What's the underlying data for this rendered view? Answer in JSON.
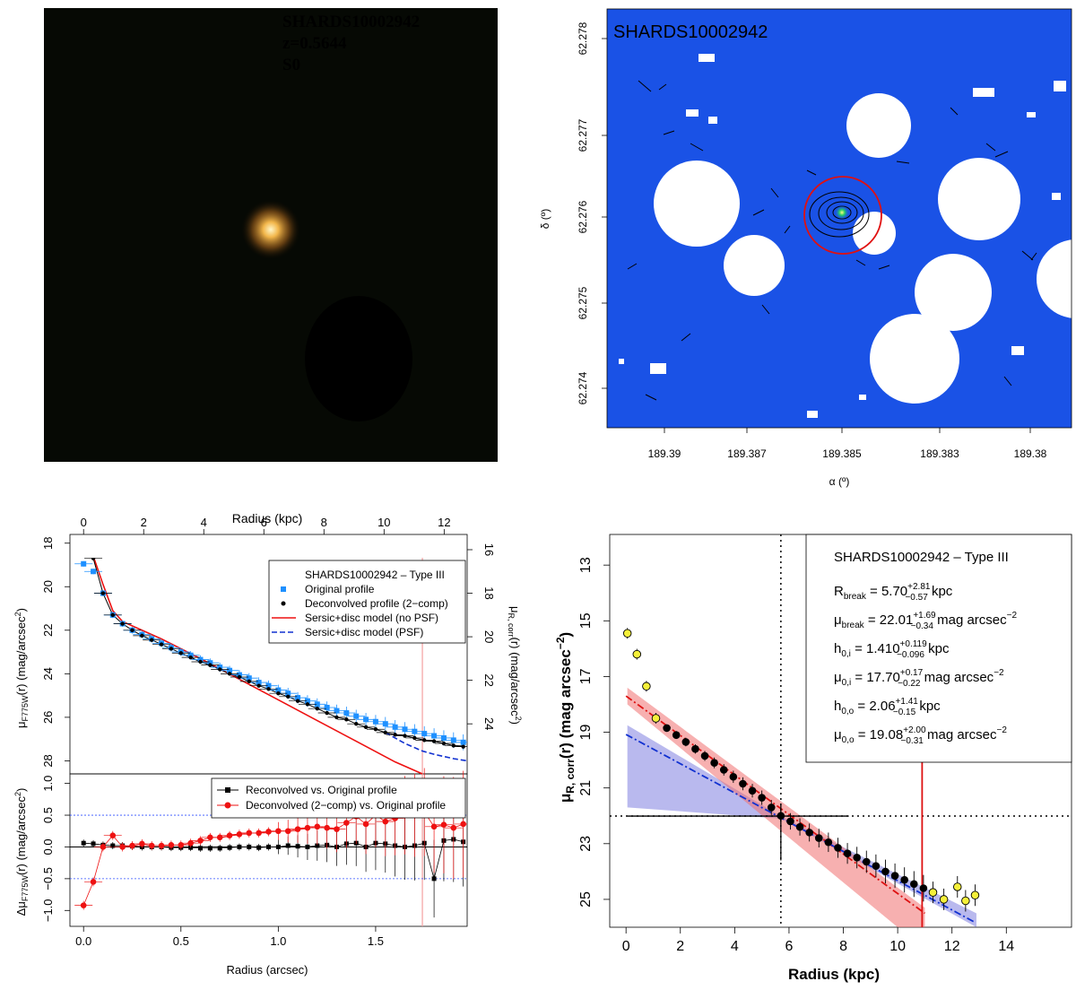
{
  "panel_image": {
    "id_label": "SHARDS10002942",
    "redshift_label": "z=0.5644",
    "morph_label": "S0",
    "label_color": "#f2d400"
  },
  "panel_map": {
    "id_label": "SHARDS10002942",
    "label_color": "#f2d400",
    "bg_color": "#1a52e6",
    "xlabel": "α (º)",
    "ylabel": "δ (º)",
    "x_ticks": [
      "189.39",
      "189.387",
      "189.385",
      "189.383",
      "189.38"
    ],
    "y_ticks": [
      "62.278",
      "62.277",
      "62.276",
      "62.275",
      "62.274"
    ]
  },
  "chart_data": [
    {
      "type": "line",
      "title": "",
      "xlabel": "Radius (arcsec)",
      "x2label": "Radius (kpc)",
      "ylabel": "μF775W(r) (mag/arcsec²)",
      "y2label": "μR, corr(r) (mag/arcsec²)",
      "xlim": [
        -0.07,
        1.97
      ],
      "ylim": [
        28.6,
        17.6
      ],
      "x_ticks": [
        "0.0",
        "0.5",
        "1.0",
        "1.5"
      ],
      "x2_ticks": [
        "0",
        "2",
        "4",
        "6",
        "8",
        "10",
        "12"
      ],
      "y_ticks": [
        "18",
        "20",
        "22",
        "24",
        "26",
        "28"
      ],
      "y2_ticks": [
        "16",
        "18",
        "20",
        "22",
        "24"
      ],
      "legend_title": "SHARDS10002942  –  Type III",
      "legend": [
        "Original profile",
        "Deconvolved profile (2−comp)",
        "Sersic+disc model (no PSF)",
        "Sersic+disc model (PSF)"
      ],
      "break_radius_arcsec": 1.74,
      "series": [
        {
          "name": "Original profile",
          "color": "#1e90ff",
          "x": [
            0.0,
            0.05,
            0.1,
            0.15,
            0.2,
            0.25,
            0.3,
            0.35,
            0.4,
            0.45,
            0.5,
            0.55,
            0.6,
            0.65,
            0.7,
            0.75,
            0.8,
            0.85,
            0.9,
            0.95,
            1.0,
            1.05,
            1.1,
            1.15,
            1.2,
            1.25,
            1.3,
            1.35,
            1.4,
            1.45,
            1.5,
            1.55,
            1.6,
            1.65,
            1.7,
            1.75,
            1.8,
            1.85,
            1.9,
            1.95
          ],
          "y": [
            18.95,
            19.3,
            20.3,
            21.3,
            21.7,
            22.0,
            22.2,
            22.4,
            22.6,
            22.8,
            23.0,
            23.15,
            23.35,
            23.5,
            23.7,
            23.85,
            24.05,
            24.2,
            24.4,
            24.55,
            24.75,
            24.9,
            25.1,
            25.25,
            25.4,
            25.55,
            25.7,
            25.8,
            25.95,
            26.1,
            26.2,
            26.3,
            26.45,
            26.55,
            26.65,
            26.75,
            26.85,
            26.95,
            27.05,
            27.15
          ]
        },
        {
          "name": "Deconvolved profile (2−comp)",
          "color": "#000000",
          "x": [
            0.0,
            0.05,
            0.1,
            0.15,
            0.2,
            0.25,
            0.3,
            0.35,
            0.4,
            0.45,
            0.5,
            0.55,
            0.6,
            0.65,
            0.7,
            0.75,
            0.8,
            0.85,
            0.9,
            0.95,
            1.0,
            1.05,
            1.1,
            1.15,
            1.2,
            1.25,
            1.3,
            1.35,
            1.4,
            1.45,
            1.5,
            1.55,
            1.6,
            1.65,
            1.7,
            1.75,
            1.8,
            1.85,
            1.9,
            1.95
          ],
          "y": [
            17.95,
            18.7,
            20.3,
            21.3,
            21.7,
            22.0,
            22.25,
            22.45,
            22.65,
            22.85,
            23.05,
            23.25,
            23.45,
            23.6,
            23.8,
            24.0,
            24.15,
            24.35,
            24.55,
            24.7,
            24.9,
            25.05,
            25.25,
            25.4,
            25.6,
            25.8,
            26.0,
            26.1,
            26.3,
            26.45,
            26.55,
            26.7,
            26.8,
            26.85,
            26.95,
            27.05,
            27.1,
            27.2,
            27.3,
            27.35
          ]
        },
        {
          "name": "Sersic+disc model (no PSF)",
          "color": "#ee1111",
          "x": [
            0.0,
            0.05,
            0.1,
            0.15,
            0.2,
            0.4,
            0.6,
            0.8,
            1.0,
            1.2,
            1.4,
            1.6,
            1.74
          ],
          "y": [
            17.9,
            18.6,
            19.9,
            21.1,
            21.6,
            22.4,
            23.3,
            24.25,
            25.2,
            26.15,
            27.1,
            28.05,
            28.6
          ]
        },
        {
          "name": "Sersic+disc model (PSF)",
          "color": "#1030d0",
          "x": [
            1.55,
            1.65,
            1.74,
            1.8,
            1.9,
            1.97
          ],
          "y": [
            26.7,
            27.2,
            27.55,
            27.7,
            27.9,
            28.0
          ]
        }
      ]
    },
    {
      "type": "scatter",
      "xlabel": "Radius (arcsec)",
      "ylabel": "ΔμF775W(r) (mag/arcsec²)",
      "xlim": [
        -0.07,
        1.97
      ],
      "ylim": [
        -1.25,
        1.15
      ],
      "y_ticks": [
        "1.0",
        "0.5",
        "0.0",
        "−0.5",
        "−1.0"
      ],
      "legend": [
        "Reconvolved vs. Original profile",
        "Deconvolved (2−comp) vs. Original profile"
      ],
      "series": [
        {
          "name": "Reconvolved vs. Original profile",
          "color": "#000000",
          "x": [
            0.0,
            0.05,
            0.1,
            0.15,
            0.2,
            0.25,
            0.3,
            0.35,
            0.4,
            0.45,
            0.5,
            0.55,
            0.6,
            0.65,
            0.7,
            0.75,
            0.8,
            0.85,
            0.9,
            0.95,
            1.0,
            1.05,
            1.1,
            1.15,
            1.2,
            1.25,
            1.3,
            1.35,
            1.4,
            1.45,
            1.5,
            1.55,
            1.6,
            1.65,
            1.7,
            1.75,
            1.8,
            1.85,
            1.9,
            1.95
          ],
          "y": [
            0.06,
            0.05,
            0.03,
            0.02,
            0.02,
            0.01,
            0.0,
            0.0,
            0.0,
            -0.01,
            -0.01,
            -0.01,
            -0.02,
            -0.02,
            -0.02,
            -0.01,
            0.0,
            0.0,
            -0.01,
            0.0,
            0.0,
            0.02,
            0.01,
            0.0,
            0.02,
            0.03,
            0.0,
            0.05,
            0.06,
            0.0,
            0.06,
            0.05,
            0.02,
            0.0,
            0.02,
            0.06,
            -0.5,
            0.1,
            0.12,
            0.08
          ]
        },
        {
          "name": "Deconvolved (2−comp) vs. Original profile",
          "color": "#ee1111",
          "x": [
            0.0,
            0.05,
            0.1,
            0.15,
            0.2,
            0.25,
            0.3,
            0.35,
            0.4,
            0.45,
            0.5,
            0.55,
            0.6,
            0.65,
            0.7,
            0.75,
            0.8,
            0.85,
            0.9,
            0.95,
            1.0,
            1.05,
            1.1,
            1.15,
            1.2,
            1.25,
            1.3,
            1.35,
            1.4,
            1.45,
            1.5,
            1.55,
            1.6,
            1.65,
            1.7,
            1.75,
            1.8,
            1.85,
            1.9,
            1.95
          ],
          "y": [
            -0.92,
            -0.55,
            0.0,
            0.18,
            0.0,
            0.02,
            0.05,
            0.02,
            0.02,
            0.03,
            0.03,
            0.06,
            0.1,
            0.15,
            0.15,
            0.18,
            0.2,
            0.22,
            0.22,
            0.24,
            0.25,
            0.25,
            0.28,
            0.3,
            0.32,
            0.3,
            0.28,
            0.38,
            0.48,
            0.36,
            0.5,
            0.4,
            0.45,
            0.5,
            0.5,
            0.55,
            0.32,
            0.35,
            0.3,
            0.36
          ]
        }
      ]
    },
    {
      "type": "scatter",
      "xlabel": "Radius (kpc)",
      "ylabel": "μR, corr(r) (mag arcsec⁻²)",
      "xlim": [
        -0.6,
        16.4
      ],
      "ylim": [
        26.0,
        11.9
      ],
      "x_ticks": [
        "0",
        "2",
        "4",
        "6",
        "8",
        "10",
        "12",
        "14"
      ],
      "y_ticks": [
        "13",
        "15",
        "17",
        "19",
        "21",
        "23",
        "25"
      ],
      "break_radius_kpc": 5.7,
      "break_mu": 22.01,
      "outer_limit_kpc": 10.9,
      "legend_title": "SHARDS10002942  –  Type III",
      "legend_lines": [
        {
          "label": "R",
          "sub": "break",
          "value": " = 5.70",
          "sup_err": "+2.81",
          "sub_err": "−0.57",
          "unit": " kpc"
        },
        {
          "label": "μ",
          "sub": "break",
          "value": " = 22.01",
          "sup_err": "+1.69",
          "sub_err": "−0.34",
          "unit": " mag arcsec"
        },
        {
          "label": "h",
          "sub": "0,i",
          "value": " = 1.410",
          "sup_err": "+0.119",
          "sub_err": "−0.096",
          "unit": " kpc"
        },
        {
          "label": "μ",
          "sub": "0,i",
          "value": " = 17.70",
          "sup_err": "+0.17",
          "sub_err": "−0.22",
          "unit": " mag arcsec"
        },
        {
          "label": "h",
          "sub": "0,o",
          "value": " = 2.06",
          "sup_err": "+1.41",
          "sub_err": "−0.15",
          "unit": " kpc"
        },
        {
          "label": "μ",
          "sub": "0,o",
          "value": " = 19.08",
          "sup_err": "+2.00",
          "sub_err": "−0.31",
          "unit": " mag arcsec"
        }
      ],
      "unit_exponent": "−2",
      "series": [
        {
          "name": "profile (fitted)",
          "color": "#000000",
          "x": [
            1.5,
            1.85,
            2.2,
            2.55,
            2.9,
            3.25,
            3.6,
            3.95,
            4.3,
            4.65,
            5.0,
            5.35,
            5.7,
            6.05,
            6.4,
            6.75,
            7.1,
            7.45,
            7.8,
            8.15,
            8.5,
            8.85,
            9.2,
            9.55,
            9.9,
            10.25,
            10.6,
            10.95
          ],
          "y": [
            18.85,
            19.1,
            19.35,
            19.6,
            19.85,
            20.1,
            20.35,
            20.6,
            20.85,
            21.1,
            21.35,
            21.7,
            22.0,
            22.2,
            22.4,
            22.6,
            22.8,
            22.95,
            23.15,
            23.35,
            23.5,
            23.65,
            23.8,
            24.0,
            24.15,
            24.3,
            24.45,
            24.6
          ]
        },
        {
          "name": "profile (excluded)",
          "color": "#f5f03a",
          "x": [
            0.05,
            0.4,
            0.75,
            1.1,
            11.3,
            11.7,
            12.2,
            12.5,
            12.85
          ],
          "y": [
            15.45,
            16.2,
            17.35,
            18.5,
            24.75,
            25.0,
            24.55,
            25.05,
            24.85
          ]
        },
        {
          "name": "inner exponential fit",
          "color": "#dd1111",
          "x": [
            0.0,
            11.0
          ],
          "y": [
            17.7,
            25.5
          ]
        },
        {
          "name": "outer exponential fit",
          "color": "#1030d0",
          "x": [
            0.0,
            12.8
          ],
          "y": [
            19.08,
            25.8
          ]
        }
      ]
    }
  ]
}
